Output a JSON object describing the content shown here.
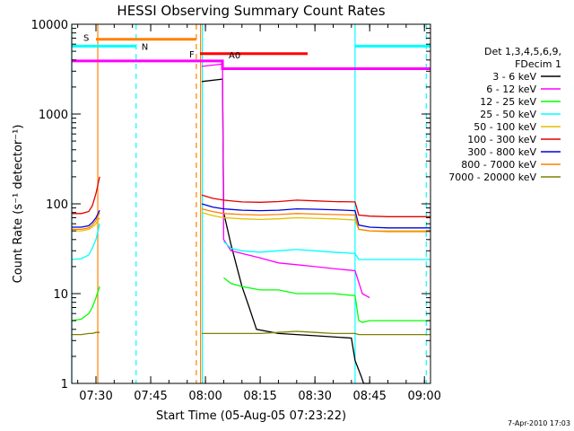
{
  "chart_data": {
    "type": "line",
    "title": "HESSI Observing Summary Count Rates",
    "xlabel": "Start Time (05-Aug-05 07:23:22)",
    "ylabel": "Count Rate (s⁻¹ detector⁻¹)",
    "yscale": "log",
    "ylim": [
      1,
      10000
    ],
    "xlim": [
      "07:23:22",
      "09:01:40"
    ],
    "x_ticks": [
      "07:30",
      "07:45",
      "08:00",
      "08:15",
      "08:30",
      "08:45",
      "09:00"
    ],
    "y_ticks": [
      "1",
      "10",
      "100",
      "1000",
      "10000"
    ],
    "grid": false,
    "legend_title": "Det 1,3,4,5,6,9,\nFDecim 1",
    "legend_title_lines": [
      "Det 1,3,4,5,6,9,",
      "FDecim 1"
    ],
    "legend_position": "right",
    "timestamp": "7-Apr-2010 17:03",
    "series": [
      {
        "name": "3 - 6 keV",
        "color": "#000000",
        "x": [
          "07:23:22",
          "07:31:00",
          "07:31:00",
          "07:58:50",
          "07:59:00",
          "08:04:40",
          "08:05:00",
          "08:07:00",
          "08:10:00",
          "08:12:00",
          "08:14:00",
          "08:20:00",
          "08:30:00",
          "08:40:00",
          "08:41:00",
          "08:42:40",
          "08:43:20",
          "08:45:00",
          "08:46:00"
        ],
        "y": [
          null,
          null,
          null,
          null,
          2300,
          2450,
          80,
          35,
          12,
          7,
          4,
          3.6,
          3.4,
          3.2,
          1.8,
          1.2,
          1,
          1,
          null
        ]
      },
      {
        "name": "6 - 12 keV",
        "color": "#ff00ff",
        "x": [
          "07:58:50",
          "07:59:00",
          "08:04:40",
          "08:05:00",
          "08:07:00",
          "08:10:00",
          "08:15:00",
          "08:20:00",
          "08:25:00",
          "08:30:00",
          "08:35:00",
          "08:41:00",
          "08:42:40",
          "08:43:00",
          "08:45:00"
        ],
        "y": [
          null,
          3400,
          3600,
          40,
          30,
          28,
          25,
          22,
          21,
          20,
          19,
          18,
          11,
          10,
          9
        ]
      },
      {
        "name": "12 - 25 keV",
        "color": "#00ff00",
        "x": [
          "07:23:22",
          "07:26:00",
          "07:28:00",
          "07:29:00",
          "07:30:00",
          "07:31:00",
          "08:04:40",
          "08:05:00",
          "08:07:00",
          "08:10:00",
          "08:15:00",
          "08:20:00",
          "08:25:00",
          "08:30:00",
          "08:35:00",
          "08:41:00",
          "08:42:00",
          "08:43:00",
          "08:45:00",
          "08:50:00",
          "08:55:00",
          "09:01:40"
        ],
        "y": [
          5,
          5.2,
          6,
          7,
          9,
          12,
          null,
          15,
          13,
          12,
          11,
          11,
          10,
          10,
          10,
          9.5,
          5,
          4.8,
          5,
          5,
          5,
          5
        ]
      },
      {
        "name": "25 - 50 keV",
        "color": "#00ffff",
        "x": [
          "07:23:22",
          "07:26:00",
          "07:28:00",
          "07:29:00",
          "07:30:00",
          "07:31:00",
          "08:04:40",
          "08:05:00",
          "08:07:00",
          "08:10:00",
          "08:15:00",
          "08:20:00",
          "08:25:00",
          "08:30:00",
          "08:35:00",
          "08:41:00",
          "08:42:00",
          "08:45:00",
          "08:50:00",
          "08:55:00",
          "09:01:40"
        ],
        "y": [
          24,
          24.5,
          27,
          32,
          40,
          60,
          null,
          38,
          32,
          30,
          29,
          30,
          31,
          30,
          29,
          28,
          24,
          24,
          24,
          24,
          24
        ]
      },
      {
        "name": "50 - 100 keV",
        "color": "#e0c000",
        "x": [
          "07:23:22",
          "07:26:00",
          "07:28:00",
          "07:29:00",
          "07:30:00",
          "07:31:00",
          "07:58:50",
          "07:59:00",
          "08:02:00",
          "08:05:00",
          "08:10:00",
          "08:15:00",
          "08:20:00",
          "08:25:00",
          "08:30:00",
          "08:35:00",
          "08:41:00",
          "08:42:00",
          "08:45:00",
          "08:50:00",
          "08:55:00",
          "09:01:40"
        ],
        "y": [
          50,
          50,
          52,
          55,
          60,
          70,
          null,
          80,
          74,
          70,
          68,
          67,
          68,
          70,
          69,
          68,
          66,
          52,
          50,
          50,
          50,
          50
        ]
      },
      {
        "name": "100 - 300 keV",
        "color": "#e00000",
        "x": [
          "07:23:22",
          "07:26:00",
          "07:28:00",
          "07:29:00",
          "07:30:00",
          "07:31:00",
          "07:58:50",
          "07:59:00",
          "08:02:00",
          "08:05:00",
          "08:10:00",
          "08:15:00",
          "08:20:00",
          "08:25:00",
          "08:30:00",
          "08:35:00",
          "08:41:00",
          "08:42:00",
          "08:45:00",
          "08:50:00",
          "08:55:00",
          "09:01:40"
        ],
        "y": [
          78,
          78,
          82,
          95,
          130,
          200,
          null,
          125,
          115,
          110,
          105,
          104,
          106,
          110,
          108,
          106,
          105,
          75,
          73,
          72,
          72,
          72
        ]
      },
      {
        "name": "300 - 800 keV",
        "color": "#0000e0",
        "x": [
          "07:23:22",
          "07:26:00",
          "07:28:00",
          "07:29:00",
          "07:30:00",
          "07:31:00",
          "07:58:50",
          "07:59:00",
          "08:02:00",
          "08:05:00",
          "08:10:00",
          "08:15:00",
          "08:20:00",
          "08:25:00",
          "08:30:00",
          "08:35:00",
          "08:41:00",
          "08:42:00",
          "08:45:00",
          "08:50:00",
          "08:55:00",
          "09:01:40"
        ],
        "y": [
          55,
          55,
          57,
          62,
          70,
          85,
          null,
          100,
          92,
          88,
          85,
          84,
          85,
          88,
          87,
          86,
          84,
          58,
          55,
          54,
          54,
          54
        ]
      },
      {
        "name": "800 - 7000 keV",
        "color": "#ff8000",
        "x": [
          "07:23:22",
          "07:26:00",
          "07:28:00",
          "07:29:00",
          "07:30:00",
          "07:31:00",
          "07:58:50",
          "07:59:00",
          "08:02:00",
          "08:05:00",
          "08:10:00",
          "08:15:00",
          "08:20:00",
          "08:25:00",
          "08:30:00",
          "08:35:00",
          "08:41:00",
          "08:42:00",
          "08:45:00",
          "08:50:00",
          "08:55:00",
          "09:01:40"
        ],
        "y": [
          52,
          52,
          54,
          58,
          65,
          80,
          null,
          88,
          82,
          78,
          76,
          75,
          76,
          78,
          77,
          76,
          75,
          52,
          50,
          49,
          49,
          49
        ]
      },
      {
        "name": "7000 - 20000 keV",
        "color": "#808000",
        "x": [
          "07:23:22",
          "07:26:00",
          "07:28:00",
          "07:29:00",
          "07:30:00",
          "07:31:00",
          "07:58:50",
          "07:59:00",
          "08:05:00",
          "08:10:00",
          "08:15:00",
          "08:20:00",
          "08:25:00",
          "08:30:00",
          "08:35:00",
          "08:41:00",
          "08:42:00",
          "08:45:00",
          "08:50:00",
          "08:55:00",
          "09:01:40"
        ],
        "y": [
          3.5,
          3.5,
          3.6,
          3.6,
          3.7,
          3.7,
          null,
          3.6,
          3.6,
          3.6,
          3.6,
          3.7,
          3.8,
          3.7,
          3.6,
          3.6,
          3.5,
          3.5,
          3.5,
          3.5,
          3.5
        ]
      }
    ],
    "flag_bars": [
      {
        "label": "S",
        "color": "#ff8000",
        "x_start": "07:30:00",
        "x_end": "07:57:30",
        "level": 6800
      },
      {
        "label": "N",
        "color": "#00ffff",
        "x_start": "07:23:22",
        "x_end": "07:41:00",
        "level": 5700
      },
      {
        "label": "N",
        "color": "#00ffff",
        "x_start": "08:41:00",
        "x_end": "09:01:40",
        "level": 5700,
        "show_label": false
      },
      {
        "label": "F",
        "color": "#ff0000",
        "x_start": "07:58:30",
        "x_end": "08:28:00",
        "level": 4700
      },
      {
        "label": "A0",
        "color": "#ff00ff",
        "x_start": "07:23:22",
        "x_end": "09:01:40",
        "level": 3900,
        "step_down_at": "08:04:40",
        "step_level": 3200
      }
    ],
    "vertical_lines": [
      {
        "x": "07:23:22",
        "color": "#00ffff",
        "style": "solid"
      },
      {
        "x": "07:30:30",
        "color": "#ff8000",
        "style": "solid"
      },
      {
        "x": "07:41:00",
        "color": "#00ffff",
        "style": "dashed"
      },
      {
        "x": "07:57:30",
        "color": "#ff8000",
        "style": "dashed"
      },
      {
        "x": "07:58:40",
        "color": "#ff8000",
        "style": "solid"
      },
      {
        "x": "07:59:10",
        "color": "#00ffff",
        "style": "solid"
      },
      {
        "x": "08:41:00",
        "color": "#00ffff",
        "style": "solid"
      },
      {
        "x": "09:00:30",
        "color": "#00ffff",
        "style": "dashed"
      }
    ]
  }
}
